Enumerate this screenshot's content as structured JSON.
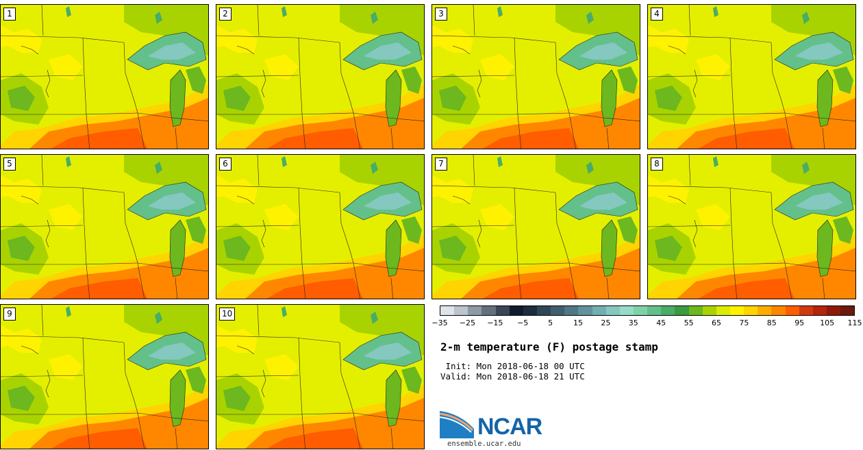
{
  "panels": [
    {
      "label": "1"
    },
    {
      "label": "2"
    },
    {
      "label": "3"
    },
    {
      "label": "4"
    },
    {
      "label": "5"
    },
    {
      "label": "6"
    },
    {
      "label": "7"
    },
    {
      "label": "8"
    },
    {
      "label": "9"
    },
    {
      "label": "10"
    }
  ],
  "colorbar": {
    "colors": [
      "#dfe4ea",
      "#bcc4cc",
      "#8e9aa6",
      "#63707e",
      "#3a4656",
      "#101c2c",
      "#1e2d3c",
      "#2f4656",
      "#3f5e6e",
      "#4f7886",
      "#5f929c",
      "#72afb1",
      "#85c8c0",
      "#96dcc9",
      "#7ed2a6",
      "#63c08a",
      "#48ad67",
      "#3b9a40",
      "#6cb81e",
      "#a9d300",
      "#dcec00",
      "#fff200",
      "#ffd400",
      "#ffae00",
      "#ff8700",
      "#ff5d00",
      "#d23a0e",
      "#b2260c",
      "#8e1b0a",
      "#6b1a0c"
    ],
    "tick_labels": [
      "−35",
      "−25",
      "−15",
      "−5",
      "5",
      "15",
      "25",
      "35",
      "45",
      "55",
      "65",
      "75",
      "85",
      "95",
      "105",
      "115"
    ]
  },
  "title": "2-m temperature (F) postage stamp",
  "init": " Init: Mon 2018-06-18 00 UTC",
  "valid": "Valid: Mon 2018-06-18 21 UTC",
  "logo": {
    "text": "NCAR",
    "site": "ensemble.ucar.edu"
  }
}
